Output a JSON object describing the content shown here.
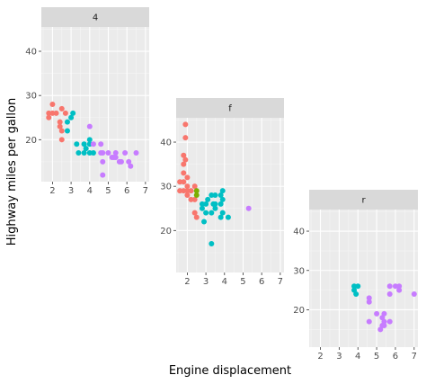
{
  "chart_data": {
    "type": "scatter",
    "xlabel": "Engine displacement",
    "ylabel": "Highway miles per gallon",
    "grid": true,
    "legend": "none",
    "point_colors": {
      "4": "#F8766D",
      "5": "#7CAE00",
      "6": "#00BFC4",
      "8": "#C77CFF"
    },
    "panels": [
      {
        "strip": "4",
        "xlim": [
          1.4,
          7.2
        ],
        "ylim": [
          10.5,
          45.5
        ],
        "xticks": [
          2,
          3,
          4,
          5,
          6,
          7
        ],
        "yticks": [
          20,
          30,
          40
        ],
        "points": [
          {
            "x": 1.8,
            "y": 25,
            "cyl": "4"
          },
          {
            "x": 1.8,
            "y": 26,
            "cyl": "4"
          },
          {
            "x": 2.0,
            "y": 28,
            "cyl": "4"
          },
          {
            "x": 2.0,
            "y": 26,
            "cyl": "4"
          },
          {
            "x": 2.2,
            "y": 26,
            "cyl": "4"
          },
          {
            "x": 2.4,
            "y": 24,
            "cyl": "4"
          },
          {
            "x": 2.4,
            "y": 23,
            "cyl": "4"
          },
          {
            "x": 2.5,
            "y": 27,
            "cyl": "4"
          },
          {
            "x": 2.5,
            "y": 22,
            "cyl": "4"
          },
          {
            "x": 2.5,
            "y": 20,
            "cyl": "4"
          },
          {
            "x": 2.7,
            "y": 26,
            "cyl": "4"
          },
          {
            "x": 2.8,
            "y": 24,
            "cyl": "6"
          },
          {
            "x": 3.0,
            "y": 25,
            "cyl": "6"
          },
          {
            "x": 2.8,
            "y": 22,
            "cyl": "6"
          },
          {
            "x": 3.1,
            "y": 26,
            "cyl": "6"
          },
          {
            "x": 3.3,
            "y": 19,
            "cyl": "6"
          },
          {
            "x": 3.4,
            "y": 17,
            "cyl": "6"
          },
          {
            "x": 3.7,
            "y": 17,
            "cyl": "6"
          },
          {
            "x": 3.7,
            "y": 19,
            "cyl": "6"
          },
          {
            "x": 3.8,
            "y": 18,
            "cyl": "6"
          },
          {
            "x": 4.0,
            "y": 17,
            "cyl": "6"
          },
          {
            "x": 4.0,
            "y": 20,
            "cyl": "6"
          },
          {
            "x": 4.0,
            "y": 19,
            "cyl": "6"
          },
          {
            "x": 4.2,
            "y": 17,
            "cyl": "6"
          },
          {
            "x": 4.0,
            "y": 23,
            "cyl": "8"
          },
          {
            "x": 4.2,
            "y": 19,
            "cyl": "8"
          },
          {
            "x": 4.6,
            "y": 17,
            "cyl": "8"
          },
          {
            "x": 4.6,
            "y": 19,
            "cyl": "8"
          },
          {
            "x": 4.7,
            "y": 17,
            "cyl": "8"
          },
          {
            "x": 4.7,
            "y": 15,
            "cyl": "8"
          },
          {
            "x": 5.0,
            "y": 17,
            "cyl": "8"
          },
          {
            "x": 5.2,
            "y": 16,
            "cyl": "8"
          },
          {
            "x": 5.4,
            "y": 16,
            "cyl": "8"
          },
          {
            "x": 5.4,
            "y": 17,
            "cyl": "8"
          },
          {
            "x": 5.6,
            "y": 15,
            "cyl": "8"
          },
          {
            "x": 5.7,
            "y": 15,
            "cyl": "8"
          },
          {
            "x": 5.9,
            "y": 17,
            "cyl": "8"
          },
          {
            "x": 6.1,
            "y": 15,
            "cyl": "8"
          },
          {
            "x": 6.2,
            "y": 14,
            "cyl": "8"
          },
          {
            "x": 4.7,
            "y": 12,
            "cyl": "8"
          },
          {
            "x": 6.5,
            "y": 17,
            "cyl": "8"
          },
          {
            "x": 5.3,
            "y": 16,
            "cyl": "8"
          }
        ]
      },
      {
        "strip": "f",
        "xlim": [
          1.4,
          7.2
        ],
        "ylim": [
          10.5,
          45.5
        ],
        "xticks": [
          2,
          3,
          4,
          5,
          6,
          7
        ],
        "yticks": [
          20,
          30,
          40
        ],
        "points": [
          {
            "x": 1.8,
            "y": 29,
            "cyl": "4"
          },
          {
            "x": 1.8,
            "y": 31,
            "cyl": "4"
          },
          {
            "x": 1.8,
            "y": 33,
            "cyl": "4"
          },
          {
            "x": 1.8,
            "y": 35,
            "cyl": "4"
          },
          {
            "x": 1.8,
            "y": 37,
            "cyl": "4"
          },
          {
            "x": 1.9,
            "y": 44,
            "cyl": "4"
          },
          {
            "x": 1.9,
            "y": 41,
            "cyl": "4"
          },
          {
            "x": 1.9,
            "y": 36,
            "cyl": "4"
          },
          {
            "x": 1.6,
            "y": 29,
            "cyl": "4"
          },
          {
            "x": 1.6,
            "y": 31,
            "cyl": "4"
          },
          {
            "x": 2.0,
            "y": 29,
            "cyl": "4"
          },
          {
            "x": 2.0,
            "y": 30,
            "cyl": "4"
          },
          {
            "x": 2.0,
            "y": 28,
            "cyl": "4"
          },
          {
            "x": 2.2,
            "y": 27,
            "cyl": "4"
          },
          {
            "x": 2.2,
            "y": 29,
            "cyl": "4"
          },
          {
            "x": 2.4,
            "y": 30,
            "cyl": "4"
          },
          {
            "x": 2.4,
            "y": 27,
            "cyl": "4"
          },
          {
            "x": 2.4,
            "y": 24,
            "cyl": "4"
          },
          {
            "x": 2.5,
            "y": 23,
            "cyl": "4"
          },
          {
            "x": 2.0,
            "y": 32,
            "cyl": "4"
          },
          {
            "x": 2.5,
            "y": 29,
            "cyl": "5"
          },
          {
            "x": 2.5,
            "y": 28,
            "cyl": "5"
          },
          {
            "x": 2.8,
            "y": 25,
            "cyl": "6"
          },
          {
            "x": 2.8,
            "y": 26,
            "cyl": "6"
          },
          {
            "x": 3.0,
            "y": 24,
            "cyl": "6"
          },
          {
            "x": 3.0,
            "y": 26,
            "cyl": "6"
          },
          {
            "x": 3.1,
            "y": 27,
            "cyl": "6"
          },
          {
            "x": 3.3,
            "y": 24,
            "cyl": "6"
          },
          {
            "x": 3.3,
            "y": 28,
            "cyl": "6"
          },
          {
            "x": 3.4,
            "y": 26,
            "cyl": "6"
          },
          {
            "x": 3.5,
            "y": 26,
            "cyl": "6"
          },
          {
            "x": 3.5,
            "y": 28,
            "cyl": "6"
          },
          {
            "x": 3.5,
            "y": 25,
            "cyl": "6"
          },
          {
            "x": 3.8,
            "y": 28,
            "cyl": "6"
          },
          {
            "x": 3.8,
            "y": 26,
            "cyl": "6"
          },
          {
            "x": 3.8,
            "y": 23,
            "cyl": "6"
          },
          {
            "x": 3.9,
            "y": 27,
            "cyl": "6"
          },
          {
            "x": 3.9,
            "y": 29,
            "cyl": "6"
          },
          {
            "x": 3.9,
            "y": 24,
            "cyl": "6"
          },
          {
            "x": 4.2,
            "y": 23,
            "cyl": "6"
          },
          {
            "x": 3.3,
            "y": 17,
            "cyl": "6"
          },
          {
            "x": 2.9,
            "y": 22,
            "cyl": "6"
          },
          {
            "x": 5.3,
            "y": 25,
            "cyl": "8"
          }
        ]
      },
      {
        "strip": "r",
        "xlim": [
          1.4,
          7.2
        ],
        "ylim": [
          10.5,
          45.5
        ],
        "xticks": [
          2,
          3,
          4,
          5,
          6,
          7
        ],
        "yticks": [
          20,
          30,
          40
        ],
        "points": [
          {
            "x": 3.8,
            "y": 26,
            "cyl": "6"
          },
          {
            "x": 3.8,
            "y": 25,
            "cyl": "6"
          },
          {
            "x": 3.9,
            "y": 24,
            "cyl": "6"
          },
          {
            "x": 4.0,
            "y": 26,
            "cyl": "6"
          },
          {
            "x": 4.6,
            "y": 23,
            "cyl": "8"
          },
          {
            "x": 4.6,
            "y": 22,
            "cyl": "8"
          },
          {
            "x": 4.6,
            "y": 17,
            "cyl": "8"
          },
          {
            "x": 5.0,
            "y": 19,
            "cyl": "8"
          },
          {
            "x": 5.2,
            "y": 15,
            "cyl": "8"
          },
          {
            "x": 5.3,
            "y": 18,
            "cyl": "8"
          },
          {
            "x": 5.3,
            "y": 16,
            "cyl": "8"
          },
          {
            "x": 5.4,
            "y": 19,
            "cyl": "8"
          },
          {
            "x": 5.4,
            "y": 17,
            "cyl": "8"
          },
          {
            "x": 5.7,
            "y": 17,
            "cyl": "8"
          },
          {
            "x": 5.7,
            "y": 24,
            "cyl": "8"
          },
          {
            "x": 5.7,
            "y": 26,
            "cyl": "8"
          },
          {
            "x": 6.0,
            "y": 26,
            "cyl": "8"
          },
          {
            "x": 6.2,
            "y": 26,
            "cyl": "8"
          },
          {
            "x": 6.2,
            "y": 25,
            "cyl": "8"
          },
          {
            "x": 7.0,
            "y": 24,
            "cyl": "8"
          },
          {
            "x": 5.4,
            "y": 16,
            "cyl": "8"
          }
        ]
      }
    ]
  }
}
